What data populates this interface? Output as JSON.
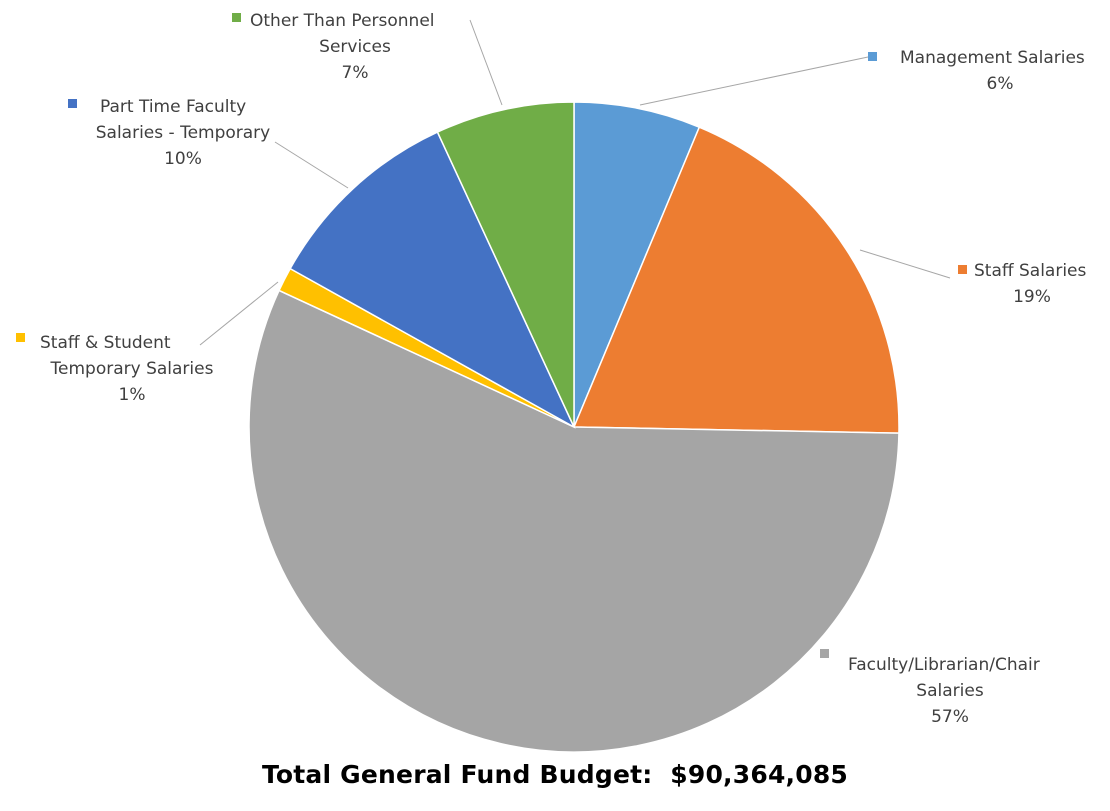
{
  "chart_data": {
    "type": "pie",
    "slices": [
      {
        "name": "Management Salaries",
        "percent_label": "6%",
        "value": 6.3,
        "color": "#5B9BD5"
      },
      {
        "name": "Staff Salaries",
        "percent_label": "19%",
        "value": 19.0,
        "color": "#ED7D31"
      },
      {
        "name": "Faculty/Librarian/Chair Salaries",
        "percent_label": "57%",
        "value": 56.6,
        "color": "#A5A5A5"
      },
      {
        "name": "Staff & Student Temporary Salaries",
        "percent_label": "1%",
        "value": 1.2,
        "color": "#FFC000"
      },
      {
        "name": "Part Time Faculty Salaries - Temporary",
        "percent_label": "10%",
        "value": 10.0,
        "color": "#4472C4"
      },
      {
        "name": "Other Than Personnel Services",
        "percent_label": "7%",
        "value": 6.9,
        "color": "#70AD47"
      }
    ],
    "legend": "none; data labels with category name and percentage"
  },
  "footer": {
    "label": "Total General Fund Budget:",
    "amount": "$90,364,085"
  }
}
